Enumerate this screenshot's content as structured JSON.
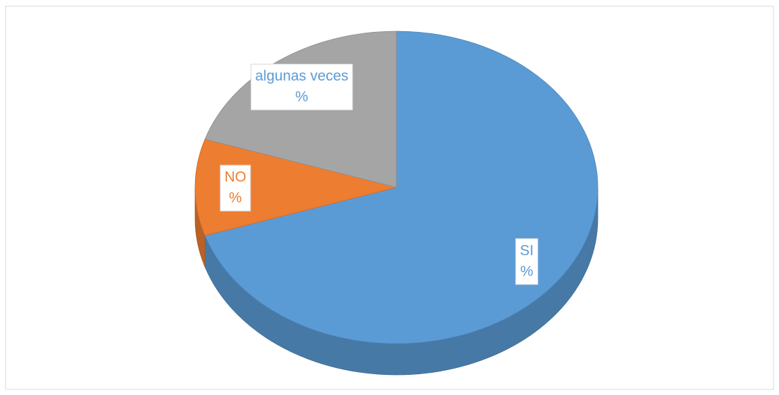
{
  "chart_data": {
    "type": "pie3d",
    "categories": [
      "SI",
      "NO",
      "algunas veces"
    ],
    "values": [
      70,
      10,
      20
    ],
    "value_labels": [
      "%",
      "%",
      "%"
    ],
    "colors": [
      "#5b9bd5",
      "#ed7d31",
      "#a5a5a5"
    ],
    "label_colors": [
      "#5b9bd5",
      "#ed7d31",
      "#5b9bd5"
    ]
  }
}
